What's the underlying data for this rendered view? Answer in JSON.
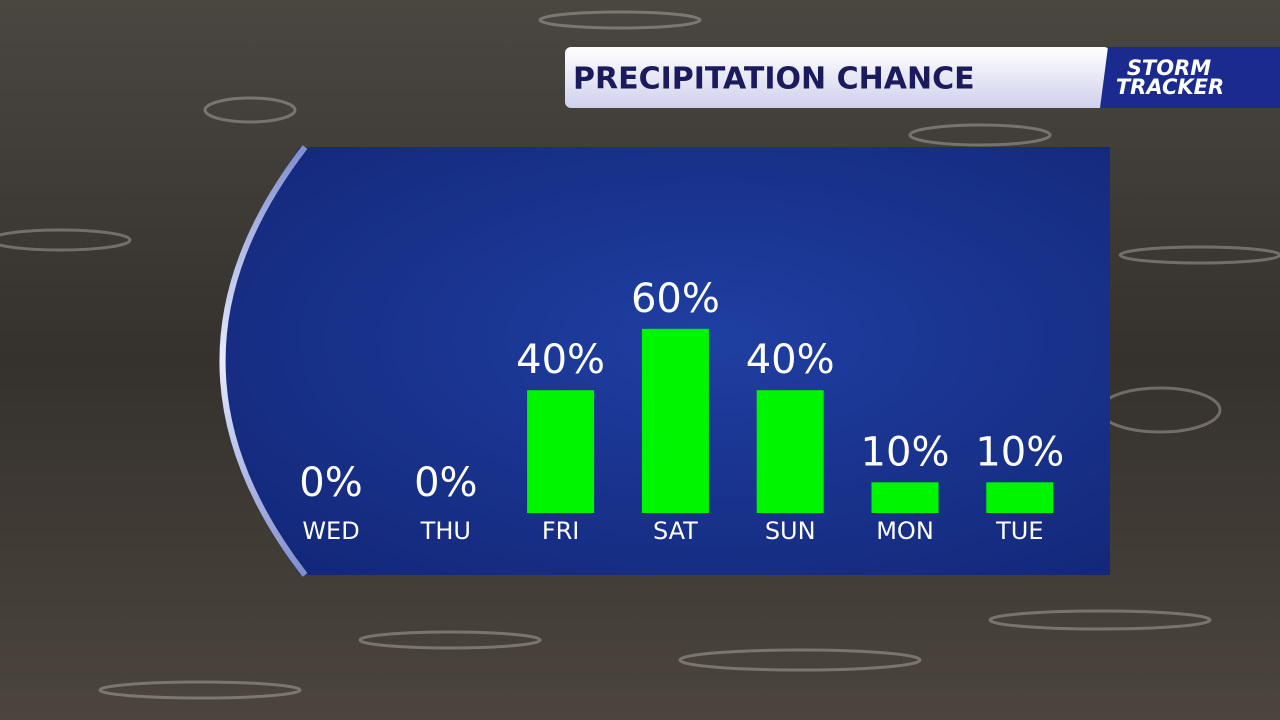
{
  "chart_data": {
    "type": "bar",
    "title": "PRECIPITATION CHANCE",
    "categories": [
      "WED",
      "THU",
      "FRI",
      "SAT",
      "SUN",
      "MON",
      "TUE"
    ],
    "values": [
      0,
      0,
      40,
      60,
      40,
      10,
      10
    ],
    "value_labels": [
      "0%",
      "0%",
      "40%",
      "60%",
      "40%",
      "10%",
      "10%"
    ],
    "color": "#00f600"
  },
  "branding": {
    "logo": [
      "STORM",
      "TRACKER"
    ]
  }
}
